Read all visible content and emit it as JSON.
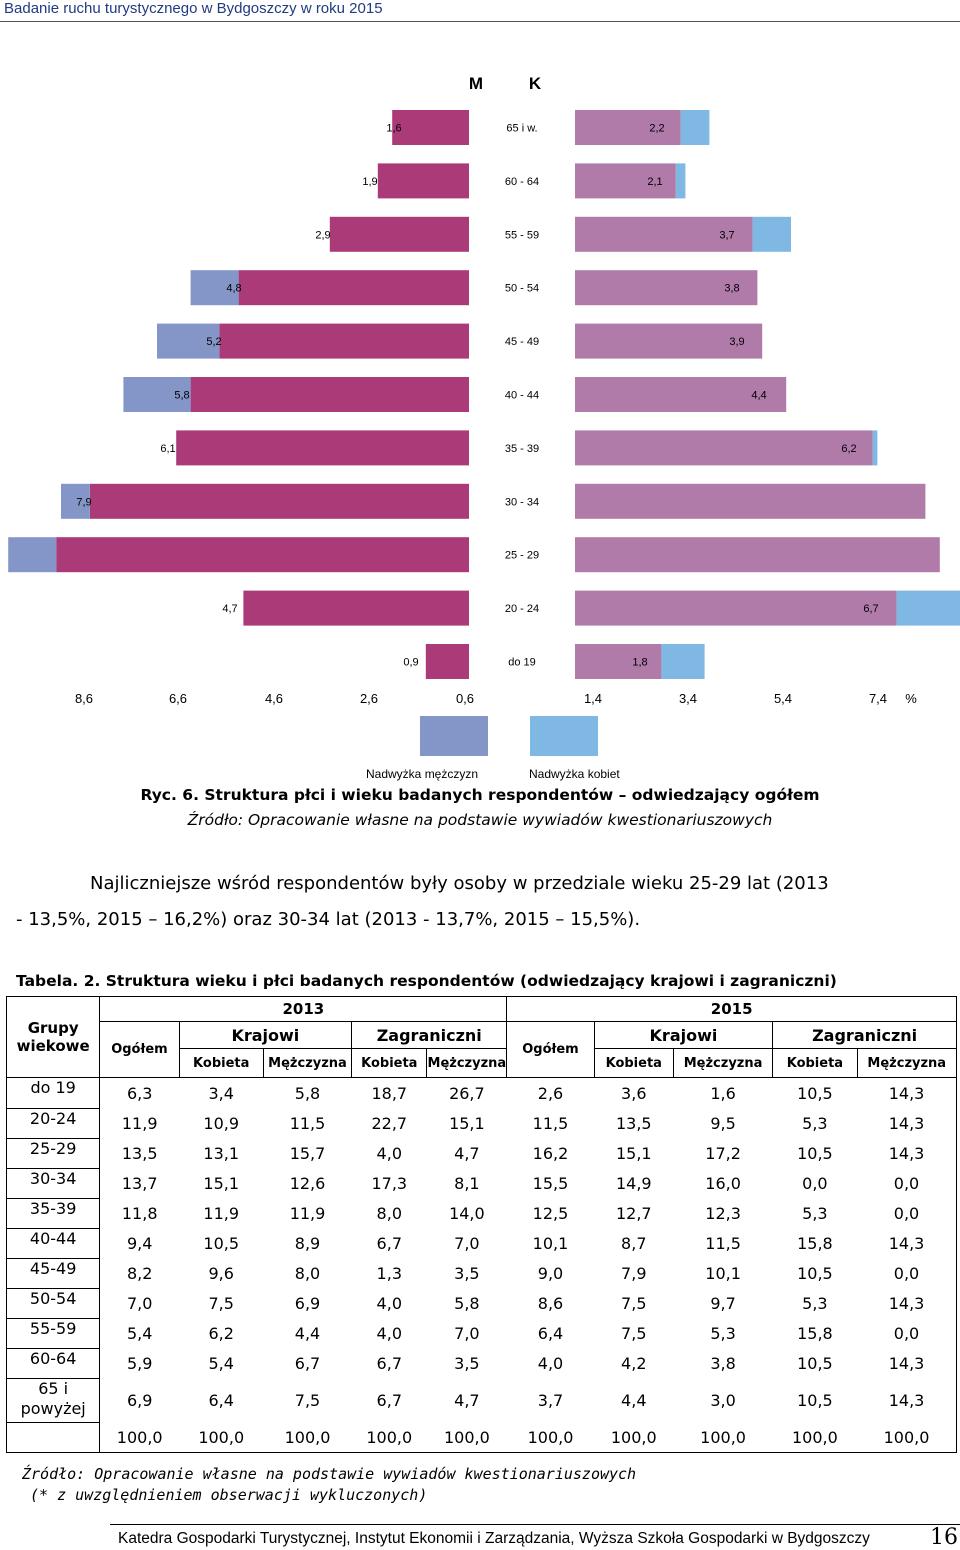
{
  "header": {
    "title": "Badanie ruchu turystycznego w Bydgoszczy w roku 2015"
  },
  "chart_data": {
    "type": "bar",
    "title": "",
    "series_labels": {
      "men": "M",
      "women": "K"
    },
    "categories": [
      "65 i w.",
      "60 - 64",
      "55 - 59",
      "50 - 54",
      "45 - 49",
      "40 - 44",
      "35 - 39",
      "30 - 34",
      "25 - 29",
      "20 - 24",
      "do 19"
    ],
    "series": [
      {
        "name": "M",
        "values": [
          1.6,
          1.9,
          2.9,
          4.8,
          5.2,
          5.8,
          6.1,
          7.9,
          8.6,
          4.7,
          0.9
        ],
        "value_labels": [
          "1,6",
          "1,9",
          "2,9",
          "4,8",
          "5,2",
          "5,8",
          "6,1",
          "7,9",
          "",
          "4,7",
          "0,9"
        ]
      },
      {
        "name": "K",
        "values": [
          2.2,
          2.1,
          3.7,
          3.8,
          3.9,
          4.4,
          6.2,
          7.3,
          7.6,
          6.7,
          1.8
        ],
        "value_labels": [
          "2,2",
          "2,1",
          "3,7",
          "3,8",
          "3,9",
          "4,4",
          "6,2",
          "",
          "",
          "6,7",
          "1,8"
        ]
      }
    ],
    "men_overlap": [
      1.6,
      1.9,
      2.9,
      4.8,
      5.2,
      5.8,
      6.1,
      7.9,
      8.6,
      4.7,
      0.9
    ],
    "excess_men": [
      0,
      0,
      0,
      1.0,
      1.3,
      1.4,
      0,
      0.6,
      1.0,
      0,
      0
    ],
    "excess_women": [
      0.6,
      0.2,
      0.8,
      0,
      0,
      0,
      0.1,
      0,
      0,
      2.0,
      0.9
    ],
    "men_values_full": [
      1.6,
      1.9,
      2.9,
      4.8,
      5.2,
      5.8,
      6.1,
      7.9,
      8.6,
      4.7,
      0.9
    ],
    "women_values_full": [
      2.2,
      2.1,
      3.7,
      3.8,
      3.9,
      4.4,
      6.2,
      7.3,
      7.6,
      6.7,
      1.8
    ],
    "x_ticks_left": [
      "8,6",
      "6,6",
      "4,6",
      "2,6",
      "0,6"
    ],
    "x_ticks_right": [
      "1,4",
      "3,4",
      "5,4",
      "7,4"
    ],
    "x_unit": "%",
    "legend": [
      {
        "label": "Nadwyżka mężczyzn",
        "color": "#8496c8"
      },
      {
        "label": "Nadwyżka kobiet",
        "color": "#7fb8e3"
      }
    ],
    "colors": {
      "men": "#ab3a79",
      "women": "#b07aa9",
      "excess_men": "#8496c8",
      "excess_women": "#7fb8e3"
    }
  },
  "figure": {
    "caption": "Ryc. 6. Struktura płci i wieku badanych respondentów – odwiedzający ogółem",
    "source": "Źródło: Opracowanie własne na podstawie wywiadów kwestionariuszowych"
  },
  "paragraph": {
    "line1": "Najliczniejsze wśród respondentów były osoby w przedziale wieku 25-29 lat (2013",
    "line2": "- 13,5%, 2015 – 16,2%) oraz 30-34 lat (2013 - 13,7%, 2015 – 15,5%)."
  },
  "table": {
    "title": "Tabela. 2. Struktura wieku i płci badanych respondentów (odwiedzający krajowi i zagraniczni)",
    "header": {
      "groups_label": "Grupy wiekowe",
      "year_a": "2013",
      "year_b": "2015",
      "ogolem": "Ogółem",
      "krajowi": "Krajowi",
      "zagraniczni": "Zagraniczni",
      "kobieta": "Kobieta",
      "mezczyzna": "Mężczyzna"
    },
    "rows": [
      {
        "age": "do 19",
        "v": [
          "6,3",
          "3,4",
          "5,8",
          "18,7",
          "26,7",
          "2,6",
          "3,6",
          "1,6",
          "10,5",
          "14,3"
        ]
      },
      {
        "age": "20-24",
        "v": [
          "11,9",
          "10,9",
          "11,5",
          "22,7",
          "15,1",
          "11,5",
          "13,5",
          "9,5",
          "5,3",
          "14,3"
        ]
      },
      {
        "age": "25-29",
        "v": [
          "13,5",
          "13,1",
          "15,7",
          "4,0",
          "4,7",
          "16,2",
          "15,1",
          "17,2",
          "10,5",
          "14,3"
        ]
      },
      {
        "age": "30-34",
        "v": [
          "13,7",
          "15,1",
          "12,6",
          "17,3",
          "8,1",
          "15,5",
          "14,9",
          "16,0",
          "0,0",
          "0,0"
        ]
      },
      {
        "age": "35-39",
        "v": [
          "11,8",
          "11,9",
          "11,9",
          "8,0",
          "14,0",
          "12,5",
          "12,7",
          "12,3",
          "5,3",
          "0,0"
        ]
      },
      {
        "age": "40-44",
        "v": [
          "9,4",
          "10,5",
          "8,9",
          "6,7",
          "7,0",
          "10,1",
          "8,7",
          "11,5",
          "15,8",
          "14,3"
        ]
      },
      {
        "age": "45-49",
        "v": [
          "8,2",
          "9,6",
          "8,0",
          "1,3",
          "3,5",
          "9,0",
          "7,9",
          "10,1",
          "10,5",
          "0,0"
        ]
      },
      {
        "age": "50-54",
        "v": [
          "7,0",
          "7,5",
          "6,9",
          "4,0",
          "5,8",
          "8,6",
          "7,5",
          "9,7",
          "5,3",
          "14,3"
        ]
      },
      {
        "age": "55-59",
        "v": [
          "5,4",
          "6,2",
          "4,4",
          "4,0",
          "7,0",
          "6,4",
          "7,5",
          "5,3",
          "15,8",
          "0,0"
        ]
      },
      {
        "age": "60-64",
        "v": [
          "5,9",
          "5,4",
          "6,7",
          "6,7",
          "3,5",
          "4,0",
          "4,2",
          "3,8",
          "10,5",
          "14,3"
        ]
      },
      {
        "age": "65 i powyżej",
        "v": [
          "6,9",
          "6,4",
          "7,5",
          "6,7",
          "4,7",
          "3,7",
          "4,4",
          "3,0",
          "10,5",
          "14,3"
        ]
      },
      {
        "age": "",
        "v": [
          "100,0",
          "100,0",
          "100,0",
          "100,0",
          "100,0",
          "100,0",
          "100,0",
          "100,0",
          "100,0",
          "100,0"
        ]
      }
    ],
    "source": "Źródło: Opracowanie własne na podstawie wywiadów kwestionariuszowych",
    "note": "(* z uwzględnieniem obserwacji wykluczonych)"
  },
  "footer": {
    "text": "Katedra Gospodarki Turystycznej, Instytut Ekonomii i Zarządzania, Wyższa Szkoła Gospodarki w Bydgoszczy",
    "page": "16"
  }
}
